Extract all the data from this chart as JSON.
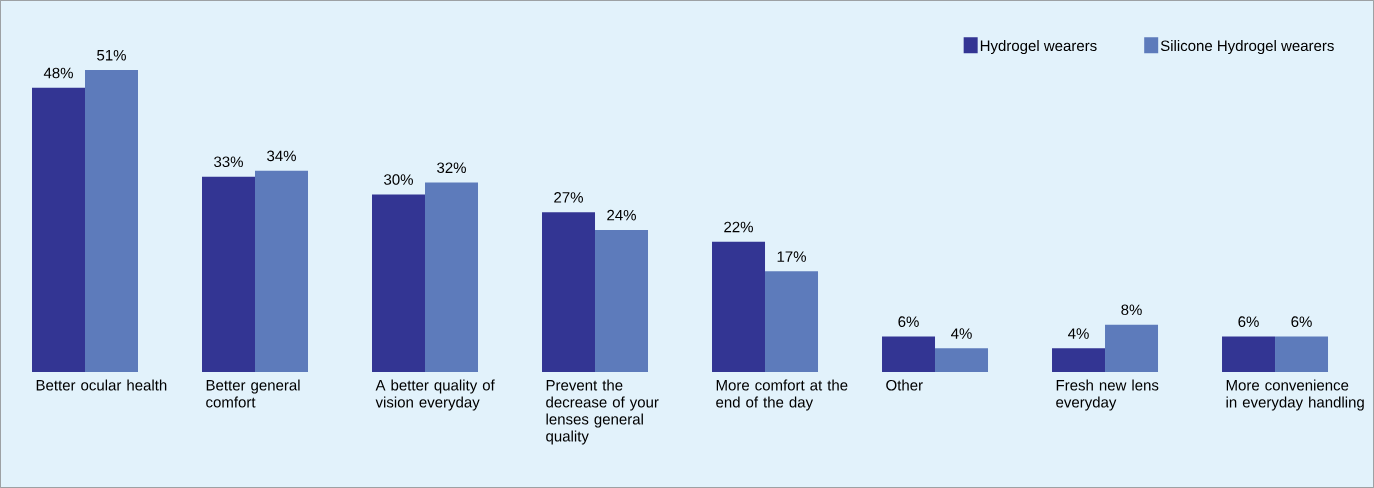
{
  "chart_data": {
    "type": "bar",
    "categories": [
      "Better ocular health",
      "Better general comfort",
      "A better quality of vision everyday",
      "Prevent the decrease of your lenses general quality",
      "More comfort at the end of the day",
      "Other",
      "Fresh new lens everyday",
      "More convenience in everyday handling"
    ],
    "series": [
      {
        "name": "Hydrogel wearers",
        "color": "#333593",
        "values": [
          48,
          33,
          30,
          27,
          22,
          6,
          4,
          6
        ],
        "value_labels": [
          "48%",
          "33%",
          "30%",
          "27%",
          "22%",
          "6%",
          "4%",
          "6%"
        ]
      },
      {
        "name": "Silicone Hydrogel wearers",
        "color": "#5d7bbb",
        "values": [
          51,
          34,
          32,
          24,
          17,
          4,
          8,
          6
        ],
        "value_labels": [
          "51%",
          "34%",
          "32%",
          "24%",
          "17%",
          "4%",
          "8%",
          "6%"
        ]
      }
    ],
    "legend": "top right"
  }
}
